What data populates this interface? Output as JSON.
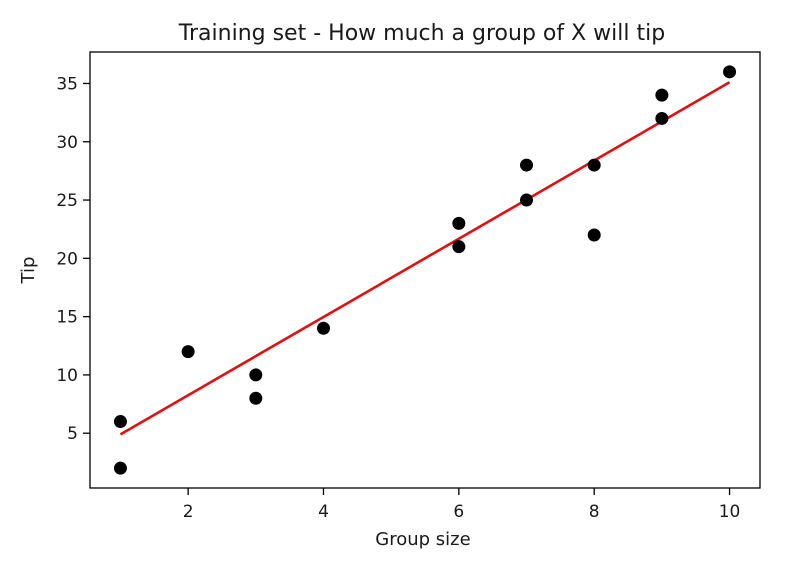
{
  "chart_data": {
    "type": "scatter",
    "title": "Training set - How much a group of X will tip",
    "xlabel": "Group size",
    "ylabel": "Tip",
    "xlim": [
      0.55,
      10.45
    ],
    "ylim": [
      0.3,
      37.7
    ],
    "xticks": [
      2,
      4,
      6,
      8,
      10
    ],
    "yticks": [
      5,
      10,
      15,
      20,
      25,
      30,
      35
    ],
    "grid": false,
    "points": [
      {
        "x": 1,
        "y": 2
      },
      {
        "x": 1,
        "y": 6
      },
      {
        "x": 2,
        "y": 12
      },
      {
        "x": 3,
        "y": 8
      },
      {
        "x": 3,
        "y": 10
      },
      {
        "x": 4,
        "y": 14
      },
      {
        "x": 6,
        "y": 21
      },
      {
        "x": 6,
        "y": 23
      },
      {
        "x": 7,
        "y": 25
      },
      {
        "x": 7,
        "y": 28
      },
      {
        "x": 8,
        "y": 22
      },
      {
        "x": 8,
        "y": 28
      },
      {
        "x": 9,
        "y": 32
      },
      {
        "x": 9,
        "y": 34
      },
      {
        "x": 10,
        "y": 36
      }
    ],
    "point_color": "#000000",
    "fit_line": {
      "x": [
        1,
        10
      ],
      "y": [
        4.9,
        35.1
      ],
      "color": "#e01010"
    }
  }
}
